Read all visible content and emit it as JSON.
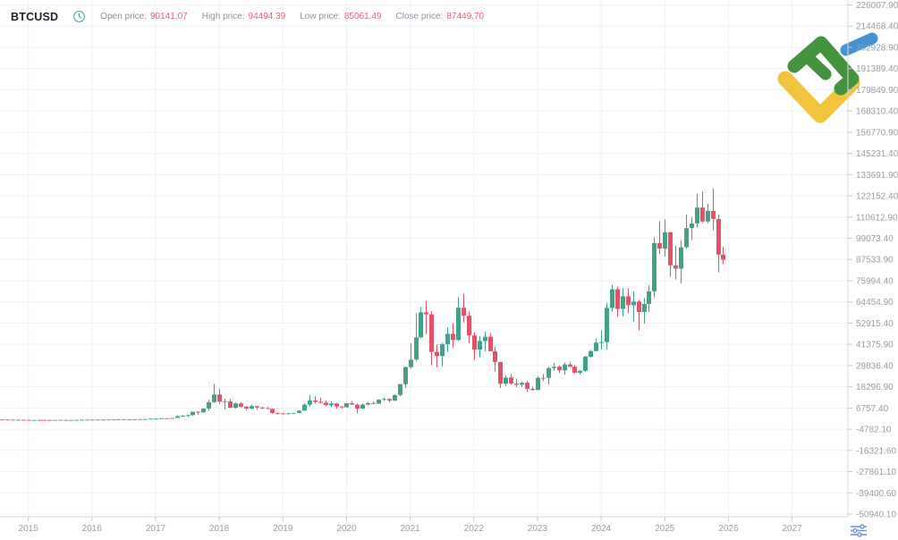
{
  "header": {
    "symbol": "BTCUSD",
    "fields": [
      {
        "label": "Open price:",
        "value": "90141.07"
      },
      {
        "label": "High price:",
        "value": "94494.39"
      },
      {
        "label": "Low price:",
        "value": "85061.49"
      },
      {
        "label": "Close price:",
        "value": "87449.70"
      }
    ]
  },
  "colors": {
    "background": "#ffffff",
    "grid": "#eef0f4",
    "axis_line": "#d4d7dc",
    "tick": "#c2c6cd",
    "axis_text": "#969ca6",
    "header_label": "#8d929e",
    "header_value": "#e0607a",
    "clock_icon": "#55a79b",
    "settings_icon": "#6a92da"
  },
  "logo": {
    "name": "litefinance-logo",
    "blue": "#4193d4",
    "green": "#44933f",
    "yellow": "#f2c33c"
  },
  "chart_data": {
    "type": "candlestick",
    "symbol": "BTCUSD",
    "timeframe": "1 month",
    "start_month": "2014-08",
    "up_color": "#42a189",
    "down_color": "#e2536a",
    "grid": true,
    "x_axis": {
      "labels": [
        "2015",
        "2016",
        "2017",
        "2018",
        "2019",
        "2020",
        "2021",
        "2022",
        "2023",
        "2024",
        "2025",
        "2026",
        "2027"
      ]
    },
    "y_axis": {
      "side": "right",
      "step": 11539.5,
      "labels": [
        "226007.90",
        "214468.40",
        "202928.90",
        "191389.40",
        "179849.90",
        "168310.40",
        "156770.90",
        "145231.40",
        "133691.90",
        "122152.40",
        "110612.90",
        "99073.40",
        "87533.90",
        "75994.40",
        "64454.90",
        "52915.40",
        "41375.90",
        "29836.40",
        "18296.90",
        "6757.40",
        "-4782.10",
        "-16321.60",
        "-27861.10",
        "-39400.60",
        "-50940.10"
      ]
    },
    "last_candle": {
      "open": 90141.07,
      "high": 94494.39,
      "low": 85061.49,
      "close": 87449.7
    },
    "candles": [
      [
        500,
        510,
        440,
        480
      ],
      [
        480,
        490,
        380,
        390
      ],
      [
        390,
        400,
        320,
        340
      ],
      [
        340,
        460,
        320,
        375
      ],
      [
        375,
        385,
        300,
        320
      ],
      [
        320,
        325,
        152,
        217
      ],
      [
        217,
        265,
        200,
        254
      ],
      [
        254,
        300,
        236,
        244
      ],
      [
        244,
        262,
        213,
        236
      ],
      [
        236,
        248,
        227,
        230
      ],
      [
        230,
        268,
        220,
        263
      ],
      [
        263,
        318,
        255,
        284
      ],
      [
        284,
        288,
        198,
        230
      ],
      [
        230,
        248,
        223,
        236
      ],
      [
        236,
        334,
        233,
        314
      ],
      [
        314,
        504,
        290,
        377
      ],
      [
        377,
        467,
        350,
        430
      ],
      [
        430,
        436,
        350,
        368
      ],
      [
        368,
        448,
        365,
        437
      ],
      [
        437,
        444,
        383,
        416
      ],
      [
        416,
        470,
        410,
        448
      ],
      [
        448,
        554,
        438,
        531
      ],
      [
        531,
        780,
        513,
        673
      ],
      [
        673,
        706,
        605,
        624
      ],
      [
        624,
        628,
        540,
        575
      ],
      [
        575,
        629,
        565,
        610
      ],
      [
        610,
        707,
        598,
        700
      ],
      [
        700,
        755,
        672,
        745
      ],
      [
        745,
        982,
        740,
        963
      ],
      [
        963,
        1190,
        750,
        970
      ],
      [
        970,
        1230,
        920,
        1180
      ],
      [
        1180,
        1290,
        890,
        1080
      ],
      [
        1080,
        1365,
        1060,
        1350
      ],
      [
        1350,
        2760,
        1320,
        2300
      ],
      [
        2300,
        3000,
        2080,
        2480
      ],
      [
        2480,
        2920,
        1830,
        2875
      ],
      [
        2875,
        4760,
        2570,
        4735
      ],
      [
        4735,
        4980,
        2970,
        4360
      ],
      [
        4360,
        6480,
        4110,
        6450
      ],
      [
        6450,
        11300,
        5430,
        9950
      ],
      [
        9950,
        19900,
        9400,
        14100
      ],
      [
        14100,
        17200,
        9000,
        10200
      ],
      [
        10200,
        11790,
        6000,
        10360
      ],
      [
        10360,
        11700,
        6600,
        6930
      ],
      [
        6930,
        9760,
        6430,
        9240
      ],
      [
        9240,
        9990,
        7040,
        7500
      ],
      [
        7500,
        7780,
        5780,
        6400
      ],
      [
        6400,
        8500,
        6070,
        7750
      ],
      [
        7750,
        7770,
        5900,
        7030
      ],
      [
        7030,
        7410,
        6100,
        6600
      ],
      [
        6600,
        7450,
        6200,
        6300
      ],
      [
        6300,
        6550,
        3620,
        4040
      ],
      [
        4040,
        4310,
        3150,
        3740
      ],
      [
        3740,
        4110,
        3350,
        3460
      ],
      [
        3460,
        4200,
        3350,
        3850
      ],
      [
        3850,
        4140,
        3670,
        4100
      ],
      [
        4100,
        5620,
        4030,
        5350
      ],
      [
        5350,
        9100,
        5330,
        8580
      ],
      [
        8580,
        13880,
        7430,
        10800
      ],
      [
        10800,
        13200,
        9100,
        10080
      ],
      [
        10080,
        12320,
        9080,
        9630
      ],
      [
        9630,
        10950,
        7700,
        8310
      ],
      [
        8310,
        10540,
        7300,
        9200
      ],
      [
        9200,
        9600,
        6520,
        7570
      ],
      [
        7570,
        7690,
        6430,
        7190
      ],
      [
        7190,
        9570,
        6850,
        9350
      ],
      [
        9350,
        10500,
        8520,
        8600
      ],
      [
        8600,
        9200,
        3850,
        6440
      ],
      [
        6440,
        9460,
        6150,
        8630
      ],
      [
        8630,
        10070,
        8100,
        9450
      ],
      [
        9450,
        10380,
        8830,
        9140
      ],
      [
        9140,
        11450,
        8900,
        11350
      ],
      [
        11350,
        12470,
        10550,
        11650
      ],
      [
        11650,
        12050,
        9800,
        10780
      ],
      [
        10780,
        14100,
        10380,
        13800
      ],
      [
        13800,
        19860,
        13200,
        19700
      ],
      [
        19700,
        29300,
        17570,
        28990
      ],
      [
        28990,
        41950,
        28130,
        33100
      ],
      [
        33100,
        58350,
        32300,
        45160
      ],
      [
        45160,
        61800,
        44950,
        58780
      ],
      [
        58780,
        64900,
        46930,
        57720
      ],
      [
        57720,
        59500,
        30000,
        37280
      ],
      [
        37280,
        41330,
        28800,
        35040
      ],
      [
        35040,
        42450,
        29300,
        41460
      ],
      [
        41460,
        50500,
        37330,
        47100
      ],
      [
        47100,
        52950,
        39600,
        43790
      ],
      [
        43790,
        67000,
        43280,
        61300
      ],
      [
        61300,
        69000,
        53250,
        56950
      ],
      [
        56950,
        59100,
        42000,
        46200
      ],
      [
        46200,
        47990,
        32950,
        38480
      ],
      [
        38480,
        45820,
        34300,
        43190
      ],
      [
        43190,
        48240,
        37550,
        45530
      ],
      [
        45530,
        47450,
        37580,
        37640
      ],
      [
        37640,
        40020,
        26700,
        31790
      ],
      [
        31790,
        31960,
        17600,
        19940
      ],
      [
        19940,
        24670,
        18770,
        23290
      ],
      [
        23290,
        25200,
        19520,
        20050
      ],
      [
        20050,
        22800,
        18120,
        19420
      ],
      [
        19420,
        21080,
        18140,
        20490
      ],
      [
        20490,
        21480,
        15480,
        17160
      ],
      [
        17160,
        18390,
        16250,
        16540
      ],
      [
        16540,
        23960,
        16490,
        23130
      ],
      [
        23130,
        25250,
        21350,
        23140
      ],
      [
        23140,
        29180,
        19550,
        28470
      ],
      [
        28470,
        31050,
        26940,
        29230
      ],
      [
        29230,
        29850,
        25800,
        27220
      ],
      [
        27220,
        31430,
        24750,
        30470
      ],
      [
        30470,
        31860,
        28850,
        29230
      ],
      [
        29230,
        30210,
        25350,
        25930
      ],
      [
        25930,
        27480,
        24900,
        26960
      ],
      [
        26960,
        35150,
        26530,
        34650
      ],
      [
        34650,
        38420,
        34100,
        37720
      ],
      [
        37720,
        44700,
        37610,
        42270
      ],
      [
        42270,
        48970,
        38500,
        42580
      ],
      [
        42580,
        63930,
        38510,
        61200
      ],
      [
        61200,
        73800,
        59100,
        71330
      ],
      [
        71330,
        72800,
        56500,
        60640
      ],
      [
        60640,
        71980,
        56550,
        67530
      ],
      [
        67530,
        71900,
        58400,
        62680
      ],
      [
        62680,
        70000,
        53500,
        64620
      ],
      [
        64620,
        65600,
        49000,
        58970
      ],
      [
        58970,
        66500,
        52550,
        63330
      ],
      [
        63330,
        73600,
        58900,
        70220
      ],
      [
        70220,
        99650,
        66800,
        96450
      ],
      [
        96450,
        108300,
        90500,
        93430
      ],
      [
        93430,
        109350,
        89160,
        102400
      ],
      [
        102400,
        102500,
        78200,
        84350
      ],
      [
        84350,
        95000,
        76600,
        82550
      ],
      [
        82550,
        97900,
        74430,
        94180
      ],
      [
        94180,
        112000,
        93350,
        104600
      ],
      [
        104600,
        110530,
        98200,
        107140
      ],
      [
        107140,
        123230,
        105110,
        115760
      ],
      [
        115760,
        124500,
        107300,
        108240
      ],
      [
        108240,
        117900,
        107250,
        114000
      ],
      [
        114000,
        126200,
        103400,
        109600
      ],
      [
        109600,
        112000,
        80500,
        90140
      ],
      [
        90141.07,
        94494.39,
        85061.49,
        87449.7
      ]
    ]
  }
}
